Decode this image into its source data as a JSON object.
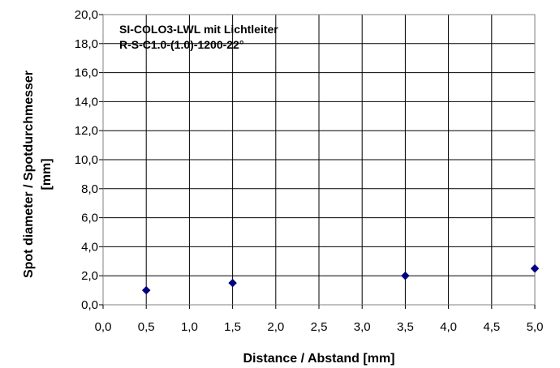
{
  "chart_data": {
    "type": "scatter",
    "title": "",
    "annotation_lines": [
      "SI-COLO3-LWL  mit  Lichtleiter",
      "R-S-C1.0-(1.0)-1200-22°"
    ],
    "xlabel": "Distance / Abstand [mm]",
    "ylabel_lines": [
      "Spot diameter / Spotdurchmesser",
      "[mm]"
    ],
    "xlim": [
      0,
      5
    ],
    "ylim": [
      0,
      20
    ],
    "x_ticks": [
      0.0,
      0.5,
      1.0,
      1.5,
      2.0,
      2.5,
      3.0,
      3.5,
      4.0,
      4.5,
      5.0
    ],
    "x_tick_labels": [
      "0,0",
      "0,5",
      "1,0",
      "1,5",
      "2,0",
      "2,5",
      "3,0",
      "3,5",
      "4,0",
      "4,5",
      "5,0"
    ],
    "y_ticks": [
      0,
      2,
      4,
      6,
      8,
      10,
      12,
      14,
      16,
      18,
      20
    ],
    "y_tick_labels": [
      "0,0",
      "2,0",
      "4,0",
      "6,0",
      "8,0",
      "10,0",
      "12,0",
      "14,0",
      "16,0",
      "18,0",
      "20,0"
    ],
    "grid": true,
    "legend": false,
    "series": [
      {
        "marker": "diamond",
        "color": "#000080",
        "points": [
          {
            "x": 0.5,
            "y": 1.0
          },
          {
            "x": 1.5,
            "y": 1.5
          },
          {
            "x": 3.5,
            "y": 2.0
          },
          {
            "x": 5.0,
            "y": 2.5
          }
        ]
      }
    ]
  }
}
